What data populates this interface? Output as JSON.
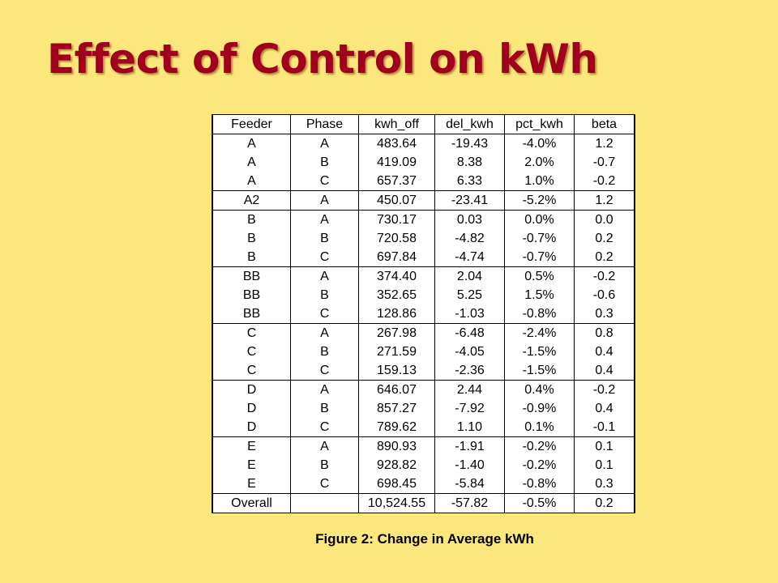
{
  "title": "Effect of Control on kWh",
  "colors": {
    "background": "#fce77d",
    "title": "#a0001e",
    "table_background": "#ffffff"
  },
  "table": {
    "headers": [
      "Feeder",
      "Phase",
      "kwh_off",
      "del_kwh",
      "pct_kwh",
      "beta"
    ],
    "rows": [
      [
        "A",
        "A",
        "483.64",
        "-19.43",
        "-4.0%",
        "1.2"
      ],
      [
        "A",
        "B",
        "419.09",
        "8.38",
        "2.0%",
        "-0.7"
      ],
      [
        "A",
        "C",
        "657.37",
        "6.33",
        "1.0%",
        "-0.2"
      ],
      [
        "A2",
        "A",
        "450.07",
        "-23.41",
        "-5.2%",
        "1.2"
      ],
      [
        "B",
        "A",
        "730.17",
        "0.03",
        "0.0%",
        "0.0"
      ],
      [
        "B",
        "B",
        "720.58",
        "-4.82",
        "-0.7%",
        "0.2"
      ],
      [
        "B",
        "C",
        "697.84",
        "-4.74",
        "-0.7%",
        "0.2"
      ],
      [
        "BB",
        "A",
        "374.40",
        "2.04",
        "0.5%",
        "-0.2"
      ],
      [
        "BB",
        "B",
        "352.65",
        "5.25",
        "1.5%",
        "-0.6"
      ],
      [
        "BB",
        "C",
        "128.86",
        "-1.03",
        "-0.8%",
        "0.3"
      ],
      [
        "C",
        "A",
        "267.98",
        "-6.48",
        "-2.4%",
        "0.8"
      ],
      [
        "C",
        "B",
        "271.59",
        "-4.05",
        "-1.5%",
        "0.4"
      ],
      [
        "C",
        "C",
        "159.13",
        "-2.36",
        "-1.5%",
        "0.4"
      ],
      [
        "D",
        "A",
        "646.07",
        "2.44",
        "0.4%",
        "-0.2"
      ],
      [
        "D",
        "B",
        "857.27",
        "-7.92",
        "-0.9%",
        "0.4"
      ],
      [
        "D",
        "C",
        "789.62",
        "1.10",
        "0.1%",
        "-0.1"
      ],
      [
        "E",
        "A",
        "890.93",
        "-1.91",
        "-0.2%",
        "0.1"
      ],
      [
        "E",
        "B",
        "928.82",
        "-1.40",
        "-0.2%",
        "0.1"
      ],
      [
        "E",
        "C",
        "698.45",
        "-5.84",
        "-0.8%",
        "0.3"
      ],
      [
        "Overall",
        "",
        "10,524.55",
        "-57.82",
        "-0.5%",
        "0.2"
      ]
    ]
  },
  "caption": "Figure 2: Change in Average kWh"
}
